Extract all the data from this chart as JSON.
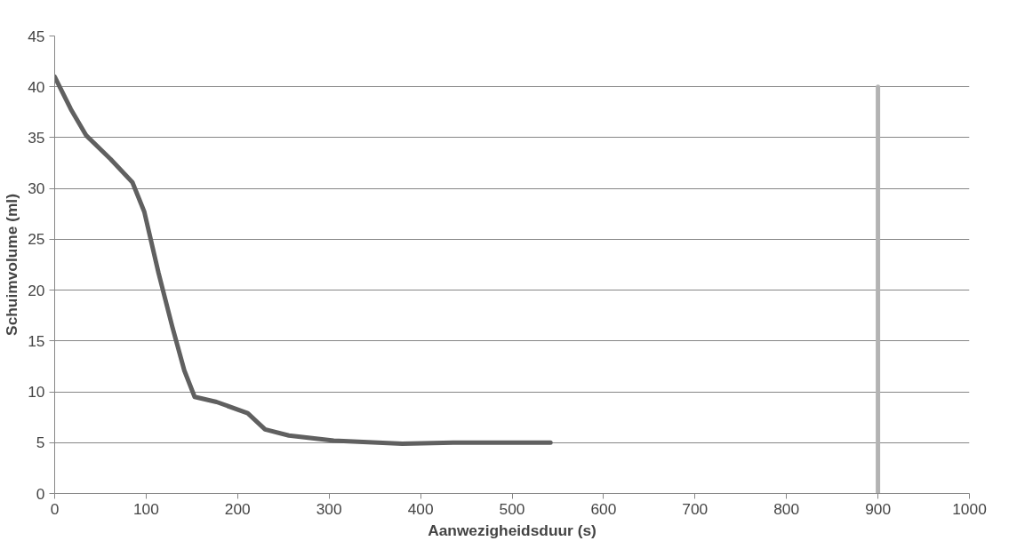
{
  "chart_data": {
    "type": "line",
    "xlabel": "Aanwezigheidsduur (s)",
    "ylabel": "Schuimvolume (ml)",
    "xlim": [
      0,
      1000
    ],
    "xticks": [
      0,
      100,
      200,
      300,
      400,
      500,
      600,
      700,
      800,
      900,
      1000
    ],
    "ylim": [
      0,
      45
    ],
    "yticks": [
      0,
      5,
      10,
      15,
      20,
      25,
      30,
      35,
      40,
      45
    ],
    "grid": "y",
    "marker": "none",
    "line_style": "solid",
    "series": [
      {
        "color": "#606060",
        "x": [
          0,
          17.7,
          34.6,
          61,
          85,
          98,
          113.5,
          128.6,
          141.7,
          153,
          177,
          211,
          230,
          256,
          305,
          380,
          437,
          542
        ],
        "values": [
          41.0,
          37.8,
          35.2,
          32.9,
          30.6,
          27.7,
          21.7,
          16.4,
          12.1,
          9.5,
          9.0,
          7.9,
          6.3,
          5.7,
          5.2,
          4.9,
          5.0,
          5.0
        ]
      },
      {
        "color": "#b3b3b3",
        "x": [
          900,
          900
        ],
        "values": [
          0,
          40
        ]
      }
    ]
  }
}
